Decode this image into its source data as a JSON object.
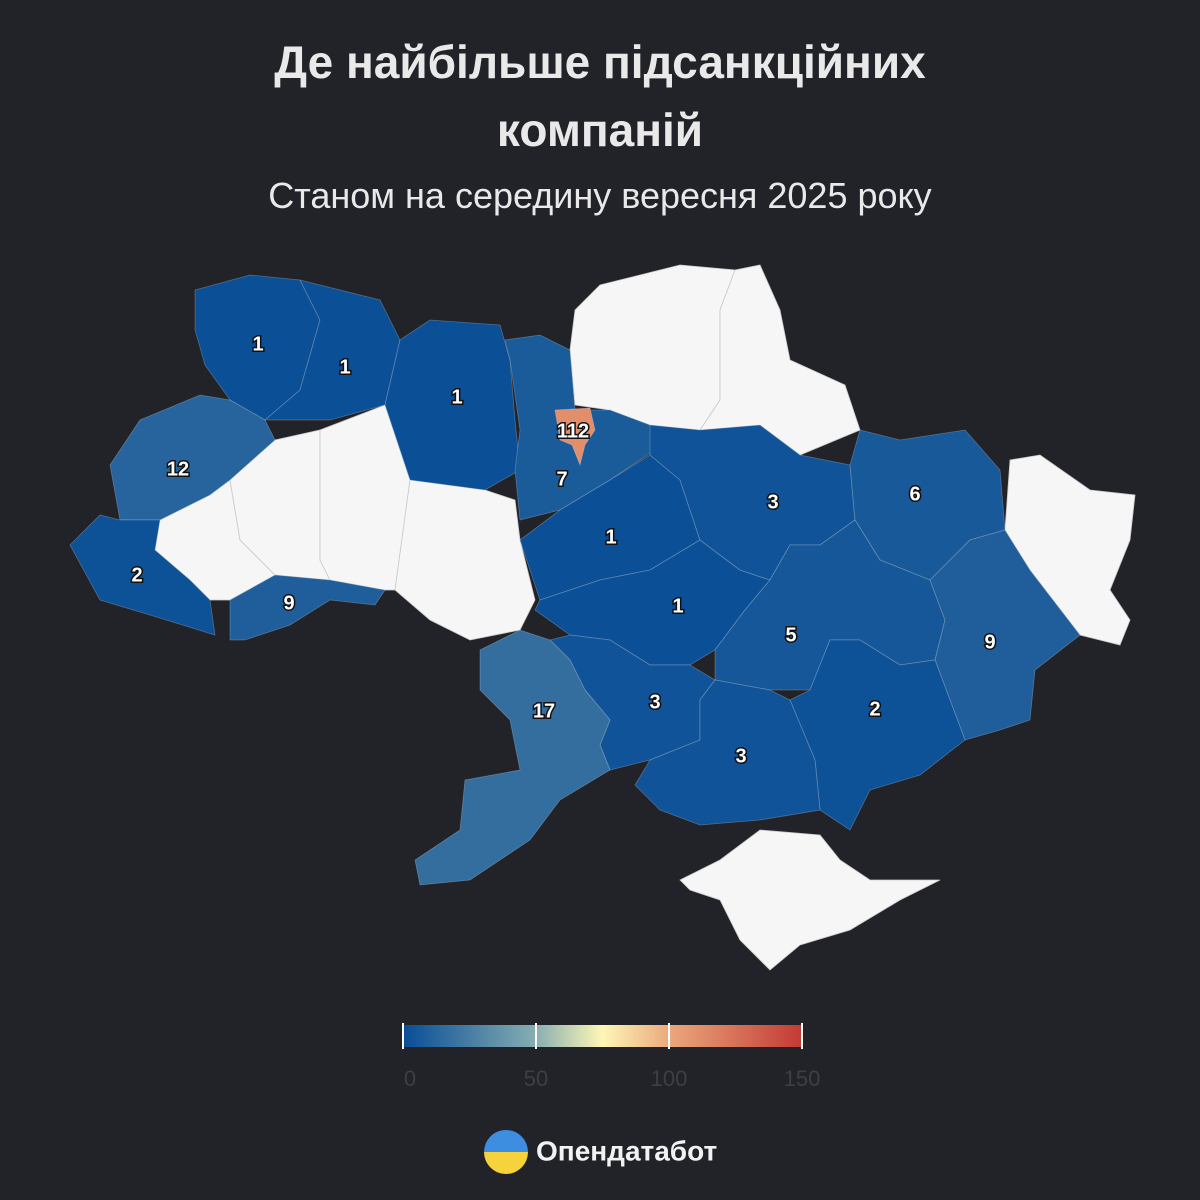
{
  "chart_data": {
    "type": "choropleth",
    "title": "Де найбільше підсанкційних компаній",
    "subtitle": "Станом на середину вересня 2025 року",
    "values": [
      1,
      1,
      1,
      7,
      112,
      12,
      2,
      9,
      1,
      1,
      3,
      6,
      5,
      9,
      2,
      3,
      3,
      17
    ],
    "range": [
      0,
      150
    ],
    "ticks": [
      0,
      50,
      100,
      150
    ],
    "colorscale": [
      [
        0,
        "#084d96"
      ],
      [
        0.33,
        "#86adb1"
      ],
      [
        0.5,
        "#fef7b6"
      ],
      [
        0.67,
        "#eba77b"
      ],
      [
        1,
        "#c33a35"
      ]
    ]
  },
  "footer": {
    "brand": "Опендатабот"
  }
}
